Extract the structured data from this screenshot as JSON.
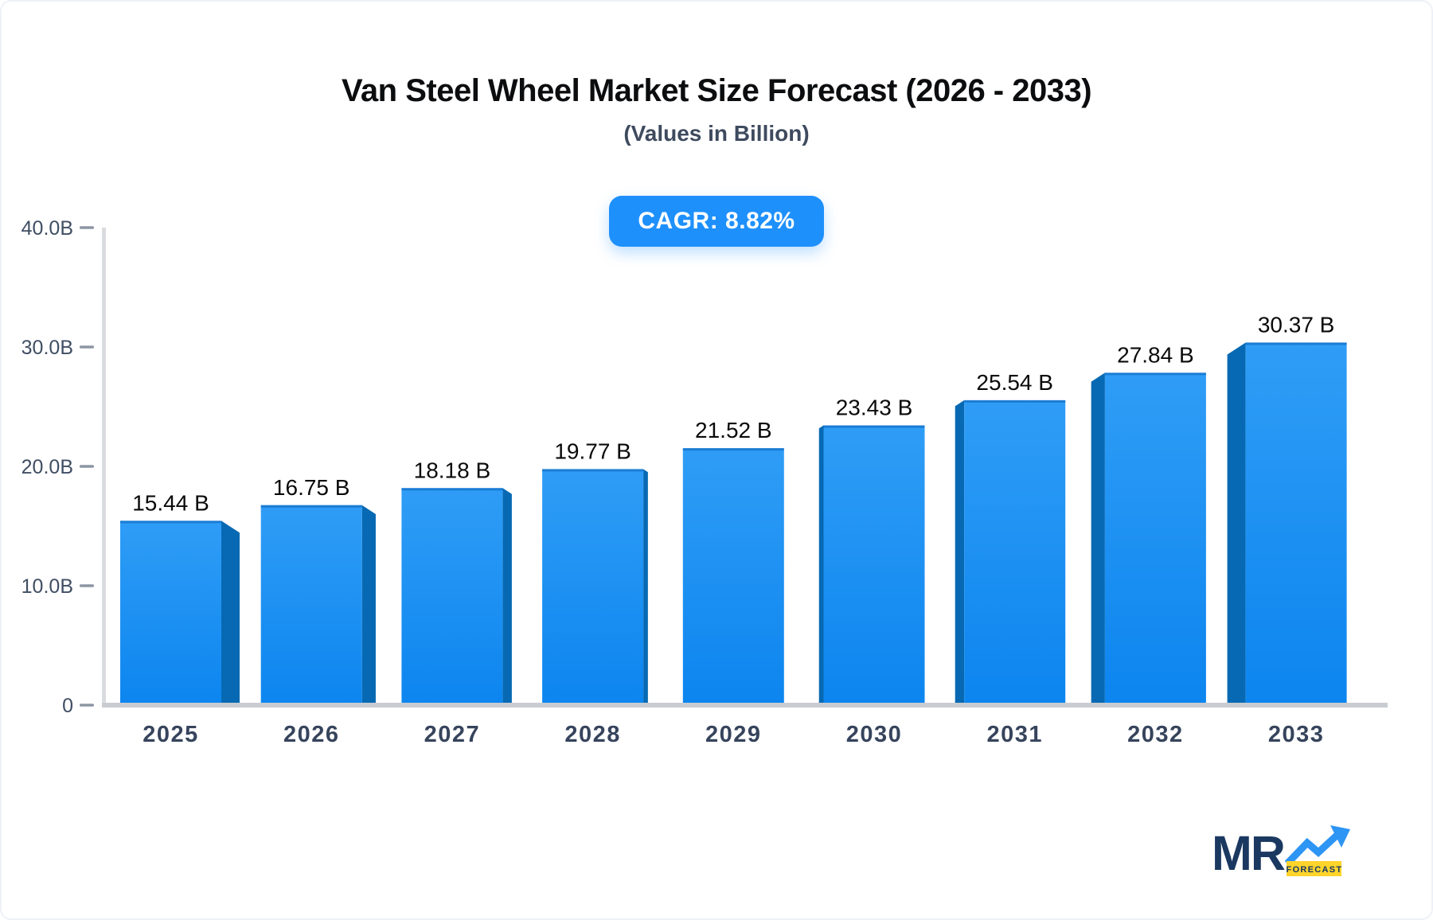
{
  "header": {
    "title": "Van Steel Wheel Market Size Forecast (2026 - 2033)",
    "subtitle": "(Values in Billion)",
    "cagr_label": "CAGR: 8.82%"
  },
  "chart_data": {
    "type": "bar",
    "title": "Van Steel Wheel Market Size Forecast (2026 - 2033)",
    "subtitle": "(Values in Billion)",
    "cagr": "8.82%",
    "unit": "Billion",
    "categories": [
      "2025",
      "2026",
      "2027",
      "2028",
      "2029",
      "2030",
      "2031",
      "2032",
      "2033"
    ],
    "values": [
      15.44,
      16.75,
      18.18,
      19.77,
      21.52,
      23.43,
      25.54,
      27.84,
      30.37
    ],
    "value_labels": [
      "15.44 B",
      "16.75 B",
      "18.18 B",
      "19.77 B",
      "21.52 B",
      "23.43 B",
      "25.54 B",
      "27.84 B",
      "30.37 B"
    ],
    "xlabel": "",
    "ylabel": "",
    "ylim": [
      0,
      40
    ],
    "yticks": [
      {
        "value": 0,
        "label": "0"
      },
      {
        "value": 10,
        "label": "10.0B"
      },
      {
        "value": 20,
        "label": "20.0B"
      },
      {
        "value": 30,
        "label": "30.0B"
      },
      {
        "value": 40,
        "label": "40.0B"
      }
    ],
    "grid": false,
    "legend": false,
    "bar_style": "3d"
  },
  "colors": {
    "bar_face_top": "#2F9DF6",
    "bar_face_bottom": "#0C85EF",
    "bar_top_edge": "#1777CE",
    "bar_side": "#0769B3",
    "axis_line": "#D9DBDF",
    "baseline": "#C9CCD1",
    "tick": "#8D96A3",
    "y_label": "#404E63",
    "x_label": "#36445C",
    "value_label": "#0A0A0B",
    "badge_bg": "#1E90FC",
    "badge_text": "#FFFFFF",
    "title": "#0C0D0F",
    "subtitle": "#3E4A5E",
    "logo_navy": "#1A3860",
    "logo_blue": "#2D95F4",
    "logo_yellow": "#FFD42B"
  },
  "logo": {
    "text": "MR",
    "caption": "FORECAST"
  }
}
